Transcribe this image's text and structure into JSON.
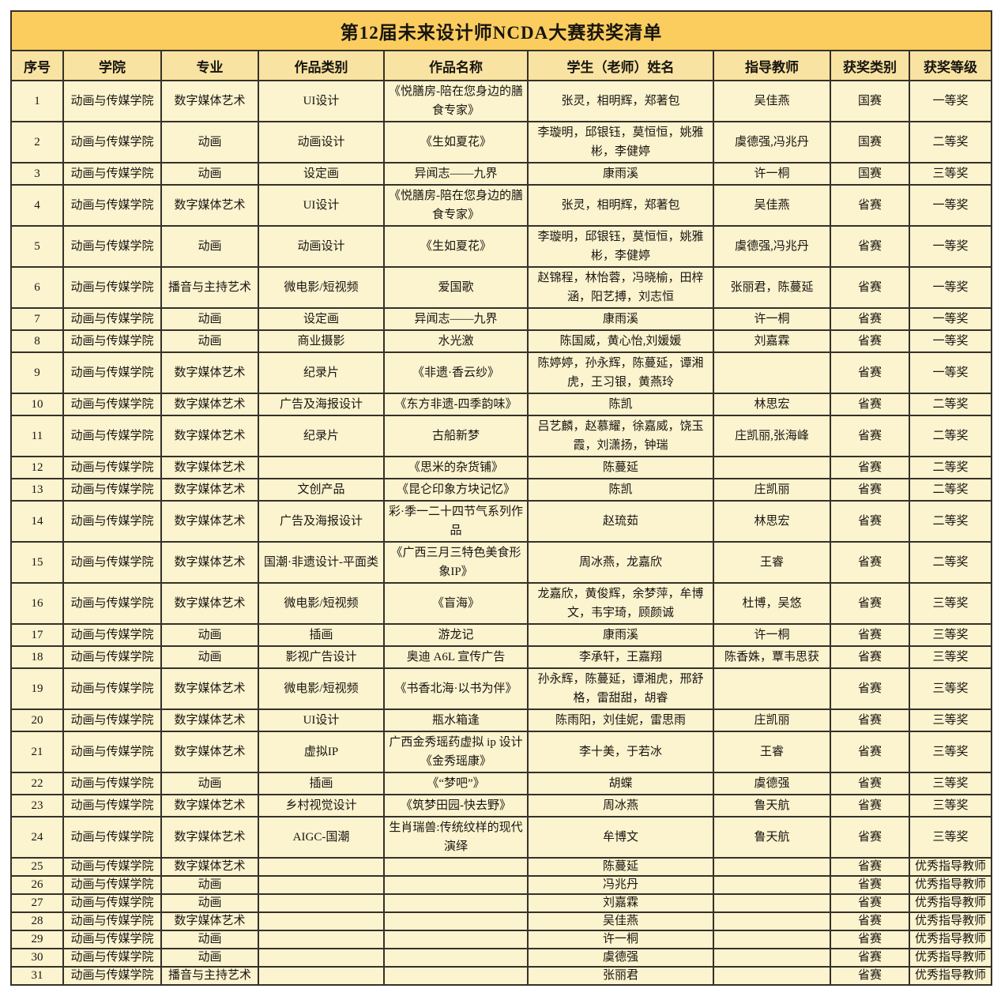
{
  "title": "第12届未来设计师NCDA大赛获奖清单",
  "colors": {
    "title_background": "#fbcd5e",
    "header_background": "#f9e3a2",
    "cell_background": "#fcf3cf",
    "border": "#35312a"
  },
  "table": {
    "columns": [
      "序号",
      "学院",
      "专业",
      "作品类别",
      "作品名称",
      "学生（老师）姓名",
      "指导教师",
      "获奖类别",
      "获奖等级"
    ],
    "rows": [
      [
        "1",
        "动画与传媒学院",
        "数字媒体艺术",
        "UI设计",
        "《悦膳房-陪在您身边的膳食专家》",
        "张灵，相明辉，郑著包",
        "吴佳燕",
        "国赛",
        "一等奖"
      ],
      [
        "2",
        "动画与传媒学院",
        "动画",
        "动画设计",
        "《生如夏花》",
        "李璇明，邱银钰，莫恒恒，姚雅彬，李健婷",
        "虞德强,冯兆丹",
        "国赛",
        "二等奖"
      ],
      [
        "3",
        "动画与传媒学院",
        "动画",
        "设定画",
        "异闻志——九界",
        "康雨溪",
        "许一桐",
        "国赛",
        "三等奖"
      ],
      [
        "4",
        "动画与传媒学院",
        "数字媒体艺术",
        "UI设计",
        "《悦膳房-陪在您身边的膳食专家》",
        "张灵，相明辉，郑著包",
        "吴佳燕",
        "省赛",
        "一等奖"
      ],
      [
        "5",
        "动画与传媒学院",
        "动画",
        "动画设计",
        "《生如夏花》",
        "李璇明，邱银钰，莫恒恒，姚雅彬，李健婷",
        "虞德强,冯兆丹",
        "省赛",
        "一等奖"
      ],
      [
        "6",
        "动画与传媒学院",
        "播音与主持艺术",
        "微电影/短视频",
        "爱国歌",
        "赵锦程，林怡蓉，冯晓榆，田梓涵，阳艺搏，刘志恒",
        "张丽君，陈蔓延",
        "省赛",
        "一等奖"
      ],
      [
        "7",
        "动画与传媒学院",
        "动画",
        "设定画",
        "异闻志——九界",
        "康雨溪",
        "许一桐",
        "省赛",
        "一等奖"
      ],
      [
        "8",
        "动画与传媒学院",
        "动画",
        "商业摄影",
        "水光激",
        "陈国威，黄心怡,刘媛媛",
        "刘嘉霖",
        "省赛",
        "一等奖"
      ],
      [
        "9",
        "动画与传媒学院",
        "数字媒体艺术",
        "纪录片",
        "《非遗·香云纱》",
        "陈婷婷，孙永辉，陈蔓延，谭湘虎，王习银，黄燕玲",
        "",
        "省赛",
        "一等奖"
      ],
      [
        "10",
        "动画与传媒学院",
        "数字媒体艺术",
        "广告及海报设计",
        "《东方非遗-四季韵味》",
        "陈凯",
        "林思宏",
        "省赛",
        "二等奖"
      ],
      [
        "11",
        "动画与传媒学院",
        "数字媒体艺术",
        "纪录片",
        "古船新梦",
        "吕艺麟，赵慕耀，徐嘉威，饶玉霞，刘潇扬，钟瑞",
        "庄凯丽,张海峰",
        "省赛",
        "二等奖"
      ],
      [
        "12",
        "动画与传媒学院",
        "数字媒体艺术",
        "",
        "《思米的杂货铺》",
        "陈蔓延",
        "",
        "省赛",
        "二等奖"
      ],
      [
        "13",
        "动画与传媒学院",
        "数字媒体艺术",
        "文创产品",
        "《昆仑印象方块记忆》",
        "陈凯",
        "庄凯丽",
        "省赛",
        "二等奖"
      ],
      [
        "14",
        "动画与传媒学院",
        "数字媒体艺术",
        "广告及海报设计",
        "彩·季一二十四节气系列作品",
        "赵琉茹",
        "林思宏",
        "省赛",
        "二等奖"
      ],
      [
        "15",
        "动画与传媒学院",
        "数字媒体艺术",
        "国潮·非遗设计-平面类",
        "《广西三月三特色美食形象IP》",
        "周冰燕，龙嘉欣",
        "王睿",
        "省赛",
        "二等奖"
      ],
      [
        "16",
        "动画与传媒学院",
        "数字媒体艺术",
        "微电影/短视频",
        "《盲海》",
        "龙嘉欣，黄俊辉，余梦萍，牟博文，韦宇琦，顾颜诚",
        "杜博，吴悠",
        "省赛",
        "三等奖"
      ],
      [
        "17",
        "动画与传媒学院",
        "动画",
        "插画",
        "游龙记",
        "康雨溪",
        "许一桐",
        "省赛",
        "三等奖"
      ],
      [
        "18",
        "动画与传媒学院",
        "动画",
        "影视广告设计",
        "奥迪 A6L 宣传广告",
        "李承轩，王嘉翔",
        "陈香姝，覃韦思获",
        "省赛",
        "三等奖"
      ],
      [
        "19",
        "动画与传媒学院",
        "数字媒体艺术",
        "微电影/短视频",
        "《书香北海·以书为伴》",
        "孙永辉，陈蔓延，谭湘虎，邢舒格，雷甜甜，胡睿",
        "",
        "省赛",
        "三等奖"
      ],
      [
        "20",
        "动画与传媒学院",
        "数字媒体艺术",
        "UI设计",
        "瓶水箱逢",
        "陈雨阳，刘佳妮，雷思雨",
        "庄凯丽",
        "省赛",
        "三等奖"
      ],
      [
        "21",
        "动画与传媒学院",
        "数字媒体艺术",
        "虚拟IP",
        "广西金秀瑶药虚拟 ip 设计《金秀瑶康》",
        "李十美，于若冰",
        "王睿",
        "省赛",
        "三等奖"
      ],
      [
        "22",
        "动画与传媒学院",
        "动画",
        "插画",
        "《“梦吧”》",
        "胡蝶",
        "虞德强",
        "省赛",
        "三等奖"
      ],
      [
        "23",
        "动画与传媒学院",
        "数字媒体艺术",
        "乡村视觉设计",
        "《筑梦田园-快去野》",
        "周冰燕",
        "鲁天航",
        "省赛",
        "三等奖"
      ],
      [
        "24",
        "动画与传媒学院",
        "数字媒体艺术",
        "AIGC-国潮",
        "生肖瑞兽:传统纹样的现代演绎",
        "牟博文",
        "鲁天航",
        "省赛",
        "三等奖"
      ],
      [
        "25",
        "动画与传媒学院",
        "数字媒体艺术",
        "",
        "",
        "陈蔓延",
        "",
        "省赛",
        "优秀指导教师"
      ],
      [
        "26",
        "动画与传媒学院",
        "动画",
        "",
        "",
        "冯兆丹",
        "",
        "省赛",
        "优秀指导教师"
      ],
      [
        "27",
        "动画与传媒学院",
        "动画",
        "",
        "",
        "刘嘉霖",
        "",
        "省赛",
        "优秀指导教师"
      ],
      [
        "28",
        "动画与传媒学院",
        "数字媒体艺术",
        "",
        "",
        "吴佳燕",
        "",
        "省赛",
        "优秀指导教师"
      ],
      [
        "29",
        "动画与传媒学院",
        "动画",
        "",
        "",
        "许一桐",
        "",
        "省赛",
        "优秀指导教师"
      ],
      [
        "30",
        "动画与传媒学院",
        "动画",
        "",
        "",
        "虞德强",
        "",
        "省赛",
        "优秀指导教师"
      ],
      [
        "31",
        "动画与传媒学院",
        "播音与主持艺术",
        "",
        "",
        "张丽君",
        "",
        "省赛",
        "优秀指导教师"
      ]
    ],
    "short_rows_from_index": 24
  }
}
